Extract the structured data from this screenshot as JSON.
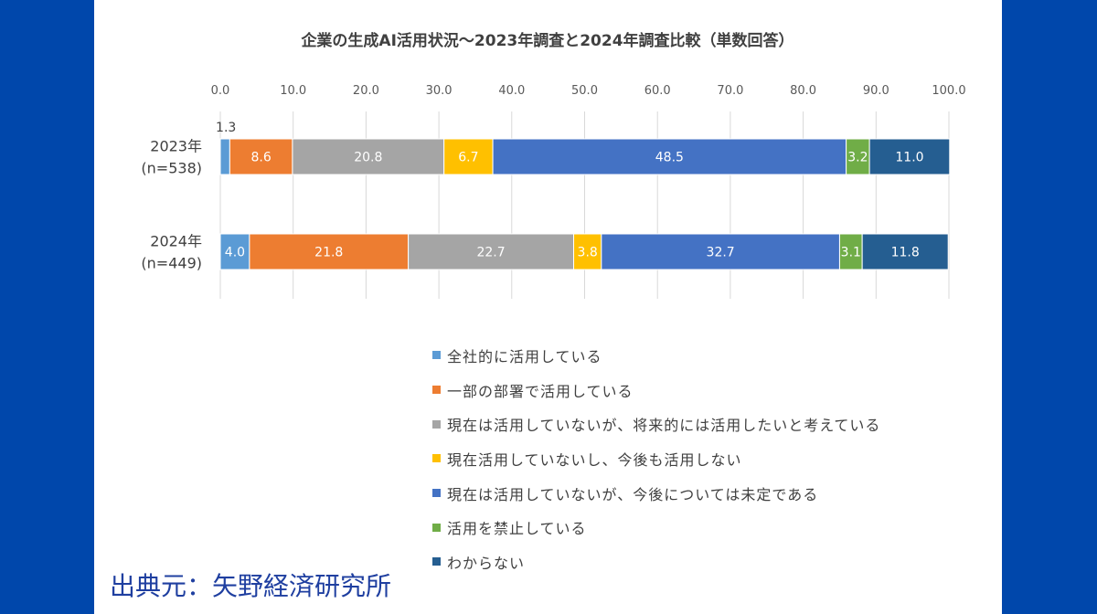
{
  "source_text": "出典元：矢野経済研究所",
  "chart_data": {
    "type": "bar",
    "orientation": "horizontal",
    "stacked": true,
    "title": "企業の生成AI活用状況～2023年調査と2024年調査比較（単数回答）",
    "xlim": [
      0,
      100
    ],
    "x_ticks": [
      "0.0",
      "10.0",
      "20.0",
      "30.0",
      "40.0",
      "50.0",
      "60.0",
      "70.0",
      "80.0",
      "90.0",
      "100.0"
    ],
    "x_tick_values": [
      0,
      10,
      20,
      30,
      40,
      50,
      60,
      70,
      80,
      90,
      100
    ],
    "grid": true,
    "legend_position": "bottom",
    "categories": [
      {
        "line1": "2023年",
        "line2": "(n=538)"
      },
      {
        "line1": "2024年",
        "line2": "(n=449)"
      }
    ],
    "series": [
      {
        "name": "全社的に活用している",
        "color": "#5B9BD5",
        "values": [
          1.3,
          4.0
        ],
        "labels": [
          "1.3",
          "4.0"
        ]
      },
      {
        "name": "一部の部署で活用している",
        "color": "#ED7D31",
        "values": [
          8.6,
          21.8
        ],
        "labels": [
          "8.6",
          "21.8"
        ]
      },
      {
        "name": "現在は活用していないが、将来的には活用したいと考えている",
        "color": "#A5A5A5",
        "values": [
          20.8,
          22.7
        ],
        "labels": [
          "20.8",
          "22.7"
        ]
      },
      {
        "name": "現在活用していないし、今後も活用しない",
        "color": "#FFC000",
        "values": [
          6.7,
          3.8
        ],
        "labels": [
          "6.7",
          "3.8"
        ]
      },
      {
        "name": "現在は活用していないが、今後については未定である",
        "color": "#4472C4",
        "values": [
          48.5,
          32.7
        ],
        "labels": [
          "48.5",
          "32.7"
        ]
      },
      {
        "name": "活用を禁止している",
        "color": "#70AD47",
        "values": [
          3.2,
          3.1
        ],
        "labels": [
          "3.2",
          "3.1"
        ]
      },
      {
        "name": "わからない",
        "color": "#255E91",
        "values": [
          11.0,
          11.8
        ],
        "labels": [
          "11.0",
          "11.8"
        ]
      }
    ]
  }
}
